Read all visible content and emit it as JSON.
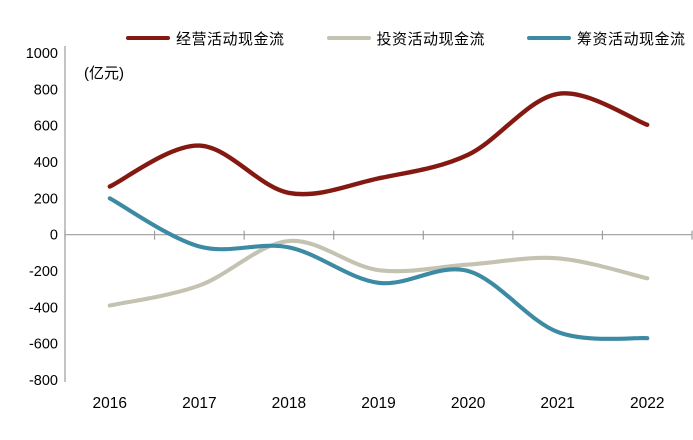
{
  "chart_data": {
    "type": "line",
    "smooth": true,
    "unit_label": "(亿元)",
    "categories": [
      "2016",
      "2017",
      "2018",
      "2019",
      "2020",
      "2021",
      "2022"
    ],
    "series": [
      {
        "name": "经营活动现金流",
        "color": "#841912",
        "values": [
          265,
          490,
          230,
          310,
          440,
          775,
          605
        ]
      },
      {
        "name": "投资活动现金流",
        "color": "#C4C3B2",
        "values": [
          -390,
          -280,
          -35,
          -195,
          -165,
          -130,
          -240
        ]
      },
      {
        "name": "筹资活动现金流",
        "color": "#3C8AA3",
        "values": [
          200,
          -65,
          -70,
          -265,
          -200,
          -535,
          -570
        ]
      }
    ],
    "ylim": [
      -800,
      1000
    ],
    "yticks": [
      1000,
      800,
      600,
      400,
      200,
      0,
      -200,
      -400,
      -600,
      -800
    ],
    "grid": "none",
    "legend_position": "top",
    "axis_color": "#9d9d9d"
  }
}
